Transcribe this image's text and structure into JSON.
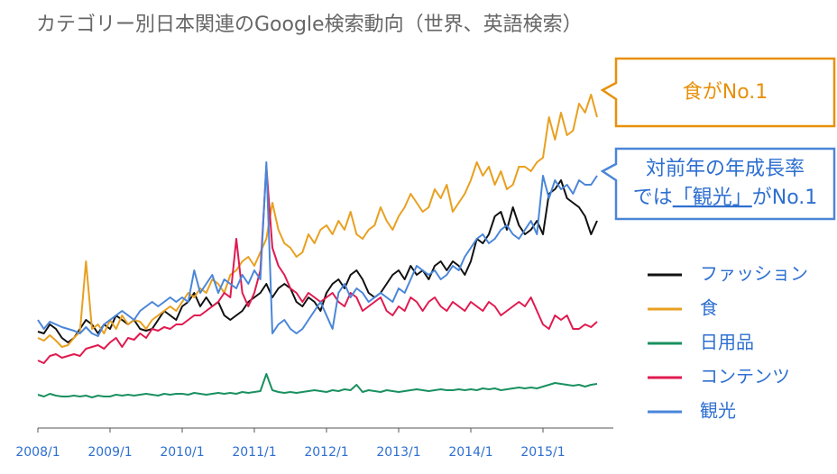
{
  "chart_data": {
    "type": "line",
    "title": "カテゴリー別日本関連のGoogle検索動向（世界、英語検索）",
    "categories": [
      "2008/1",
      null,
      null,
      null,
      null,
      null,
      null,
      null,
      null,
      null,
      null,
      null,
      "2009/1",
      null,
      null,
      null,
      null,
      null,
      null,
      null,
      null,
      null,
      null,
      null,
      "2010/1",
      null,
      null,
      null,
      null,
      null,
      null,
      null,
      null,
      null,
      null,
      null,
      "2011/1",
      null,
      null,
      null,
      null,
      null,
      null,
      null,
      null,
      null,
      null,
      null,
      "2012/1",
      null,
      null,
      null,
      null,
      null,
      null,
      null,
      null,
      null,
      null,
      null,
      "2013/1",
      null,
      null,
      null,
      null,
      null,
      null,
      null,
      null,
      null,
      null,
      null,
      "2014/1",
      null,
      null,
      null,
      null,
      null,
      null,
      null,
      null,
      null,
      null,
      null,
      "2015/1",
      null,
      null,
      null,
      null,
      null,
      null,
      null,
      null,
      null
    ],
    "ylim": [
      0,
      380
    ],
    "series": [
      {
        "name": "ファッション",
        "color": "#111111",
        "values": [
          107,
          105,
          115,
          110,
          100,
          95,
          100,
          110,
          120,
          115,
          105,
          115,
          110,
          125,
          120,
          115,
          120,
          110,
          108,
          110,
          120,
          130,
          125,
          120,
          135,
          140,
          150,
          135,
          145,
          135,
          140,
          125,
          120,
          125,
          130,
          140,
          145,
          150,
          160,
          145,
          155,
          160,
          155,
          140,
          135,
          145,
          140,
          130,
          150,
          160,
          165,
          155,
          170,
          175,
          165,
          150,
          145,
          150,
          160,
          170,
          175,
          165,
          180,
          170,
          175,
          165,
          180,
          185,
          175,
          185,
          180,
          170,
          185,
          210,
          205,
          215,
          235,
          240,
          220,
          245,
          225,
          215,
          220,
          230,
          215,
          260,
          265,
          275,
          255,
          250,
          245,
          235,
          215,
          230
        ]
      },
      {
        "name": "食",
        "color": "#e8a020",
        "values": [
          100,
          97,
          103,
          97,
          90,
          92,
          100,
          107,
          185,
          110,
          115,
          105,
          120,
          110,
          125,
          115,
          120,
          118,
          110,
          120,
          125,
          130,
          135,
          130,
          140,
          150,
          145,
          155,
          150,
          165,
          160,
          150,
          170,
          175,
          185,
          190,
          180,
          195,
          210,
          250,
          220,
          205,
          200,
          190,
          195,
          215,
          205,
          220,
          225,
          215,
          230,
          220,
          240,
          215,
          210,
          220,
          225,
          245,
          230,
          220,
          235,
          245,
          260,
          250,
          240,
          245,
          265,
          255,
          270,
          240,
          250,
          260,
          275,
          295,
          280,
          290,
          270,
          285,
          265,
          270,
          290,
          290,
          285,
          295,
          300,
          345,
          320,
          350,
          325,
          330,
          360,
          350,
          370,
          345
        ]
      },
      {
        "name": "日用品",
        "color": "#1a9060",
        "values": [
          37,
          35,
          38,
          36,
          35,
          35,
          36,
          35,
          36,
          34,
          36,
          35,
          35,
          37,
          36,
          37,
          36,
          37,
          38,
          37,
          36,
          38,
          37,
          38,
          38,
          37,
          39,
          38,
          37,
          38,
          39,
          38,
          39,
          38,
          40,
          39,
          40,
          41,
          60,
          42,
          40,
          39,
          40,
          39,
          40,
          41,
          42,
          41,
          40,
          42,
          41,
          43,
          42,
          48,
          40,
          42,
          41,
          40,
          42,
          41,
          40,
          41,
          42,
          43,
          42,
          41,
          42,
          43,
          42,
          42,
          43,
          42,
          43,
          42,
          44,
          43,
          44,
          42,
          43,
          44,
          45,
          44,
          45,
          44,
          46,
          48,
          50,
          49,
          48,
          47,
          48,
          46,
          48,
          49
        ]
      },
      {
        "name": "コンテンツ",
        "color": "#e01a4f",
        "values": [
          75,
          72,
          80,
          82,
          78,
          80,
          82,
          80,
          88,
          90,
          92,
          88,
          95,
          100,
          90,
          100,
          98,
          105,
          100,
          110,
          108,
          112,
          110,
          115,
          115,
          120,
          125,
          125,
          130,
          135,
          140,
          150,
          145,
          210,
          150,
          135,
          150,
          175,
          290,
          200,
          180,
          170,
          155,
          150,
          140,
          150,
          145,
          140,
          145,
          150,
          140,
          135,
          150,
          145,
          130,
          135,
          140,
          145,
          130,
          125,
          135,
          130,
          145,
          140,
          130,
          140,
          145,
          135,
          130,
          140,
          135,
          130,
          140,
          135,
          130,
          140,
          135,
          125,
          130,
          135,
          140,
          135,
          145,
          130,
          115,
          110,
          125,
          120,
          125,
          110,
          110,
          115,
          112,
          118
        ]
      },
      {
        "name": "観光",
        "color": "#4a86d8",
        "values": [
          120,
          110,
          118,
          115,
          112,
          110,
          108,
          105,
          112,
          105,
          102,
          115,
          120,
          125,
          130,
          125,
          120,
          130,
          135,
          140,
          135,
          140,
          145,
          140,
          145,
          140,
          175,
          150,
          160,
          170,
          150,
          165,
          160,
          155,
          170,
          160,
          175,
          165,
          295,
          105,
          115,
          120,
          110,
          105,
          110,
          120,
          130,
          140,
          125,
          110,
          150,
          160,
          145,
          155,
          150,
          140,
          145,
          150,
          145,
          140,
          155,
          150,
          165,
          180,
          175,
          170,
          175,
          165,
          170,
          180,
          175,
          190,
          200,
          210,
          215,
          205,
          210,
          220,
          225,
          215,
          210,
          220,
          230,
          215,
          280,
          255,
          275,
          265,
          270,
          260,
          275,
          270,
          270,
          280
        ]
      }
    ],
    "annotations": [
      {
        "lines": [
          [
            "食がNo.1"
          ]
        ],
        "color": "#e8900a"
      },
      {
        "lines": [
          [
            "対前年の年成長率"
          ],
          [
            "では",
            "「観光」",
            "がNo.1"
          ]
        ],
        "color": "#2e6fd0"
      }
    ]
  }
}
